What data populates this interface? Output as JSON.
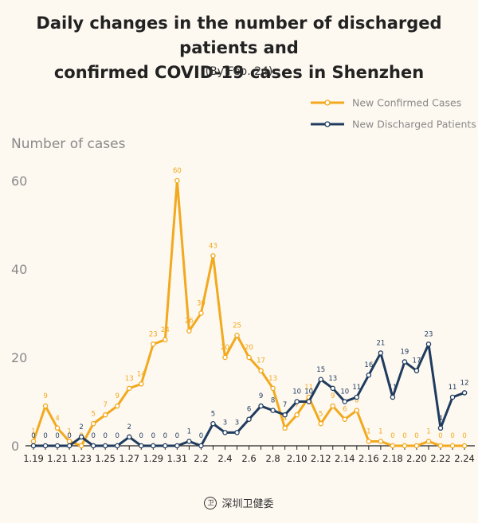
{
  "chart_data": {
    "type": "line",
    "title_line1": "Daily changes in the number of discharged patients and",
    "title_line2": "confirmed COVID-19 cases in Shenzhen",
    "subtitle": "(By Feb. 24)",
    "ylabel": "Number of cases",
    "ylim": [
      0,
      60
    ],
    "yticks": [
      0,
      20,
      40,
      60
    ],
    "legend_position": "top-right",
    "grid": false,
    "x": [
      "1.19",
      "1.20",
      "1.21",
      "1.22",
      "1.23",
      "1.24",
      "1.25",
      "1.26",
      "1.27",
      "1.28",
      "1.29",
      "1.30",
      "1.31",
      "2.1",
      "2.2",
      "2.3",
      "2.4",
      "2.5",
      "2.6",
      "2.7",
      "2.8",
      "2.9",
      "2.10",
      "2.11",
      "2.12",
      "2.13",
      "2.14",
      "2.15",
      "2.16",
      "2.17",
      "2.18",
      "2.19",
      "2.20",
      "2.21",
      "2.22",
      "2.23",
      "2.24"
    ],
    "xtick_labels": [
      "1.19",
      "1.21",
      "1.23",
      "1.25",
      "1.27",
      "1.29",
      "1.31",
      "2.2",
      "2.4",
      "2.6",
      "2.8",
      "2.10",
      "2.12",
      "2.14",
      "2.16",
      "2.18",
      "2.20",
      "2.22",
      "2.24"
    ],
    "series": [
      {
        "name": "New Confirmed Cases",
        "color": "#f2a91d",
        "values": [
          1,
          9,
          4,
          1,
          0,
          5,
          7,
          9,
          13,
          14,
          23,
          24,
          60,
          26,
          30,
          43,
          20,
          25,
          20,
          17,
          13,
          4,
          7,
          11,
          5,
          9,
          6,
          8,
          1,
          1,
          0,
          0,
          0,
          1,
          0,
          0,
          0
        ]
      },
      {
        "name": "New Discharged Patients",
        "color": "#1f3b5e",
        "values": [
          0,
          0,
          0,
          0,
          2,
          0,
          0,
          0,
          2,
          0,
          0,
          0,
          0,
          1,
          0,
          5,
          3,
          3,
          6,
          9,
          8,
          7,
          10,
          10,
          15,
          13,
          10,
          11,
          16,
          21,
          11,
          19,
          17,
          23,
          4,
          11,
          12
        ]
      }
    ]
  },
  "footer": {
    "logo_glyph": "卫",
    "text": "深圳卫健委"
  }
}
